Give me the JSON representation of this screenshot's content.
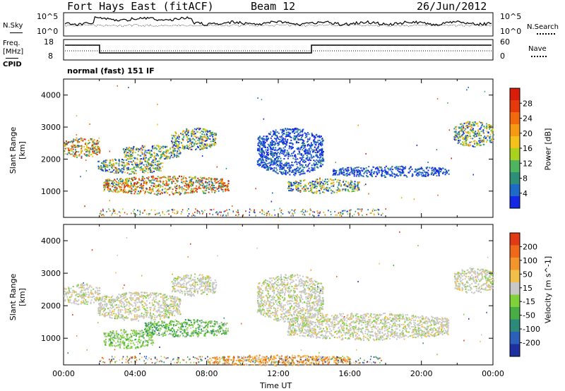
{
  "header": {
    "title": "Fort Hays East (fitACF)",
    "beam": "Beam 12",
    "date": "26/Jun/2012"
  },
  "top_panels": {
    "nsky_label": "N.Sky",
    "nsearch_label": "N.Search",
    "freq_label": "Freq.",
    "freq_unit": "[MHz]",
    "nave_label": "Nave",
    "cpid_label": "CPID",
    "cpid_value": "normal (fast) 151 IF",
    "noise_ticks": [
      "10^5",
      "10^0"
    ],
    "noise_ticks_right": [
      "10^5",
      "10^0"
    ],
    "freq_ticks": [
      "18",
      "8"
    ],
    "nave_ticks": [
      "60",
      "0"
    ]
  },
  "chart_data": [
    {
      "type": "heatmap",
      "quantity": "Power",
      "ylabel": "Slant Range [km]",
      "xlabel": "",
      "yticks": [
        "4000",
        "3000",
        "2000",
        "1000"
      ],
      "ylim": [
        180,
        4500
      ],
      "xlim_hours": [
        0,
        24
      ],
      "colorbar_label": "Power [dB]",
      "colorbar_ticks": [
        "28",
        "24",
        "20",
        "16",
        "12",
        "8",
        "4"
      ],
      "colorbar_colors": [
        "#1428e6",
        "#1e6ac8",
        "#2e8f78",
        "#4fb460",
        "#a8d21e",
        "#f2c21a",
        "#f59a12",
        "#f26a0e",
        "#e63a0c",
        "#d81e0a"
      ],
      "echo_regions": [
        {
          "hours": [
            0.0,
            2.0
          ],
          "range_km": [
            2050,
            2700
          ],
          "level": "strong"
        },
        {
          "hours": [
            1.9,
            5.5
          ],
          "range_km": [
            1550,
            2050
          ],
          "level": "medium"
        },
        {
          "hours": [
            3.3,
            6.5
          ],
          "range_km": [
            2000,
            2450
          ],
          "level": "medium"
        },
        {
          "hours": [
            6.0,
            8.5
          ],
          "range_km": [
            2300,
            3000
          ],
          "level": "medium"
        },
        {
          "hours": [
            2.2,
            9.2
          ],
          "range_km": [
            900,
            1500
          ],
          "level": "strong"
        },
        {
          "hours": [
            10.8,
            14.5
          ],
          "range_km": [
            1500,
            3000
          ],
          "level": "weak"
        },
        {
          "hours": [
            12.5,
            16.5
          ],
          "range_km": [
            950,
            1400
          ],
          "level": "medium"
        },
        {
          "hours": [
            15.0,
            21.5
          ],
          "range_km": [
            1450,
            1800
          ],
          "level": "weak"
        },
        {
          "hours": [
            21.8,
            24.0
          ],
          "range_km": [
            2400,
            3200
          ],
          "level": "medium"
        }
      ]
    },
    {
      "type": "heatmap",
      "quantity": "Velocity",
      "ylabel": "Slant Range [km]",
      "xlabel": "Time UT",
      "yticks": [
        "4000",
        "3000",
        "2000",
        "1000"
      ],
      "ylim": [
        180,
        4500
      ],
      "xlim_hours": [
        0,
        24
      ],
      "xticks": [
        "00:00",
        "04:00",
        "08:00",
        "12:00",
        "16:00",
        "20:00",
        "00:00"
      ],
      "colorbar_label": "Velocity [m s^-1]",
      "colorbar_ticks": [
        "200",
        "100",
        "50",
        "15",
        "-15",
        "-50",
        "-100",
        "-200"
      ],
      "colorbar_colors": [
        "#1e2fa0",
        "#2c5fb8",
        "#2d8a7a",
        "#48ad45",
        "#7fd23a",
        "#c8c8c8",
        "#f2c04a",
        "#f2952a",
        "#ee6a1a",
        "#e23a14"
      ],
      "echo_regions": [
        {
          "hours": [
            0.0,
            2.0
          ],
          "range_km": [
            2050,
            2700
          ],
          "level": "near-zero"
        },
        {
          "hours": [
            1.9,
            6.5
          ],
          "range_km": [
            1550,
            2450
          ],
          "level": "near-zero"
        },
        {
          "hours": [
            6.0,
            8.5
          ],
          "range_km": [
            2300,
            3000
          ],
          "level": "near-zero"
        },
        {
          "hours": [
            2.2,
            5.0
          ],
          "range_km": [
            700,
            1300
          ],
          "level": "toward"
        },
        {
          "hours": [
            4.5,
            9.2
          ],
          "range_km": [
            1050,
            1600
          ],
          "level": "toward-strong"
        },
        {
          "hours": [
            10.8,
            14.5
          ],
          "range_km": [
            1500,
            3000
          ],
          "level": "near-zero"
        },
        {
          "hours": [
            12.5,
            21.5
          ],
          "range_km": [
            950,
            1800
          ],
          "level": "near-zero"
        },
        {
          "hours": [
            21.8,
            24.0
          ],
          "range_km": [
            2400,
            3200
          ],
          "level": "near-zero"
        },
        {
          "hours": [
            8.0,
            16.0
          ],
          "range_km": [
            180,
            500
          ],
          "level": "away"
        }
      ]
    }
  ]
}
